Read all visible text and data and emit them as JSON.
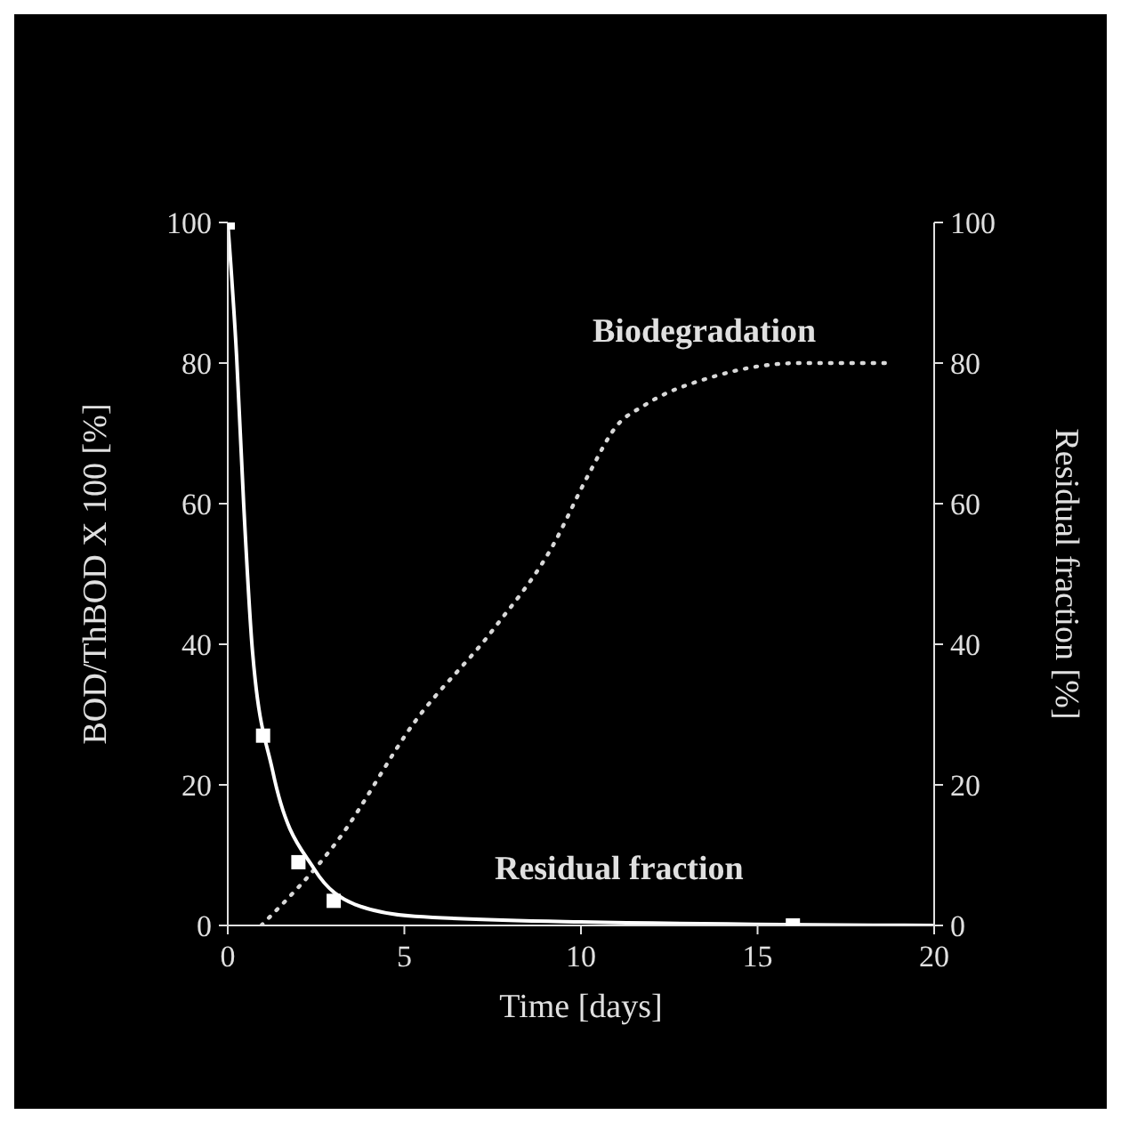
{
  "chart_data": {
    "type": "line",
    "xlabel": "Time [days]",
    "ylabel": "BOD/ThBOD X 100 [%]",
    "y2label": "Residual fraction [%]",
    "xlim": [
      0,
      20
    ],
    "xticks": [
      0,
      5,
      10,
      15,
      20
    ],
    "ylim": [
      0,
      100
    ],
    "yticks": [
      0,
      20,
      40,
      60,
      80,
      100
    ],
    "y2lim": [
      0,
      100
    ],
    "y2ticks": [
      0,
      20,
      40,
      60,
      80,
      100
    ],
    "grid": false,
    "legend": false,
    "series": [
      {
        "name": "Biodegradation",
        "color": "#d8d8d8",
        "line_style": "dotted",
        "marker": "none",
        "x": [
          0.95,
          3.1,
          5.3,
          7.5,
          9.2,
          10.2,
          11.0,
          11.8,
          13.7,
          16.2,
          18.7
        ],
        "values": [
          0,
          12,
          29,
          42,
          54,
          64,
          71,
          74,
          78,
          80,
          80
        ]
      },
      {
        "name": "Residual fraction",
        "axis": "y2",
        "color": "#ffffff",
        "line_style": "solid",
        "marker": "none",
        "x": [
          0,
          0.25,
          0.45,
          0.7,
          1.27,
          2.45,
          3.6,
          5.3,
          10,
          20
        ],
        "values": [
          100,
          81,
          60,
          39,
          22,
          8,
          3,
          1.3,
          0.5,
          0
        ]
      },
      {
        "type": "scatter",
        "axis": "y2",
        "color": "#ffffff",
        "marker": "square",
        "x": [
          0,
          1,
          2,
          3,
          16
        ],
        "values": [
          100,
          27,
          9,
          3.5,
          0
        ]
      }
    ]
  }
}
